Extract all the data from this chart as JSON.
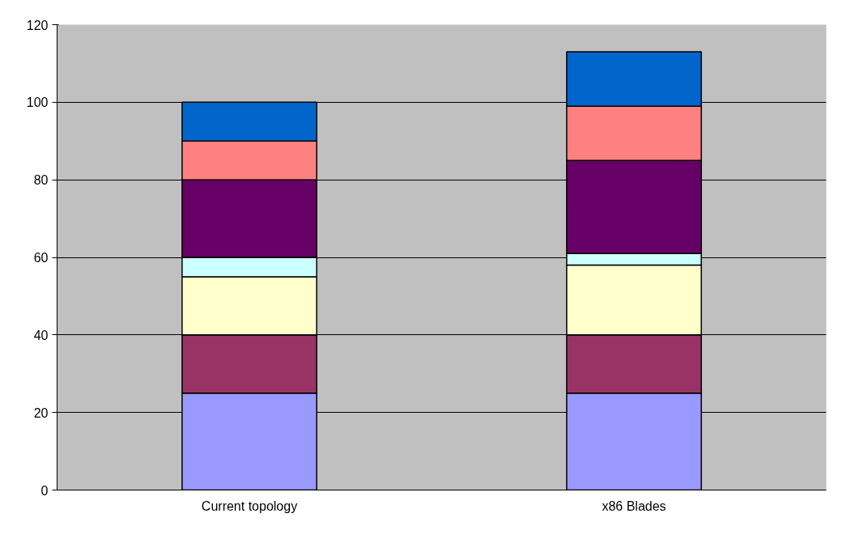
{
  "chart_data": {
    "type": "bar",
    "stacked": true,
    "categories": [
      "Current topology",
      "x86 Blades"
    ],
    "series": [
      {
        "color": "#9999ff",
        "values": [
          25,
          25
        ]
      },
      {
        "color": "#993366",
        "values": [
          15,
          15
        ]
      },
      {
        "color": "#ffffcc",
        "values": [
          15,
          18
        ]
      },
      {
        "color": "#ccffff",
        "values": [
          5,
          3
        ]
      },
      {
        "color": "#660066",
        "values": [
          20,
          24
        ]
      },
      {
        "color": "#ff8080",
        "values": [
          10,
          14
        ]
      },
      {
        "color": "#0066cc",
        "values": [
          10,
          14
        ]
      }
    ],
    "ylim": [
      0,
      120
    ],
    "yticks": [
      0,
      20,
      40,
      60,
      80,
      100,
      120
    ],
    "grid": "y"
  }
}
